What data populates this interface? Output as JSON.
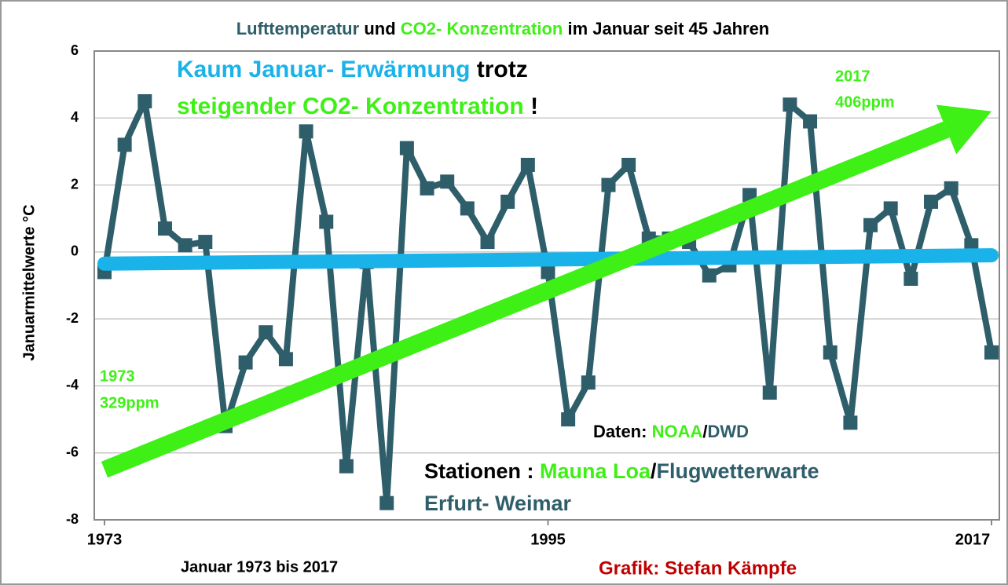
{
  "chart_data": {
    "type": "line",
    "title_parts": [
      "Lufttemperatur",
      "und",
      "CO2- Konzentration",
      "im Januar seit 45 Jahren"
    ],
    "ylabel": "Januarmittelwerte °C",
    "xlabel": "Januar 1973 bis 2017",
    "x": [
      1973,
      1974,
      1975,
      1976,
      1977,
      1978,
      1979,
      1980,
      1981,
      1982,
      1983,
      1984,
      1985,
      1986,
      1987,
      1988,
      1989,
      1990,
      1991,
      1992,
      1993,
      1994,
      1995,
      1996,
      1997,
      1998,
      1999,
      2000,
      2001,
      2002,
      2003,
      2004,
      2005,
      2006,
      2007,
      2008,
      2009,
      2010,
      2011,
      2012,
      2013,
      2014,
      2015,
      2016,
      2017
    ],
    "values": [
      -0.6,
      3.2,
      4.5,
      0.7,
      0.2,
      0.3,
      -5.2,
      -3.3,
      -2.4,
      -3.2,
      3.6,
      0.9,
      -6.4,
      -0.3,
      -7.5,
      3.1,
      1.9,
      2.1,
      1.3,
      0.3,
      1.5,
      2.6,
      -0.6,
      -5.0,
      -3.9,
      2.0,
      2.6,
      0.4,
      0.4,
      0.3,
      -0.7,
      -0.4,
      1.7,
      -4.2,
      4.4,
      3.9,
      -3.0,
      -5.1,
      0.8,
      1.3,
      -0.8,
      1.5,
      1.9,
      0.2,
      -3.0
    ],
    "color": "#2f5e6b",
    "xlim": [
      1973,
      2017
    ],
    "xticks": [
      1973,
      1995,
      2017
    ],
    "ylim": [
      -8,
      6
    ],
    "yticks": [
      6,
      4,
      2,
      0,
      -2,
      -4,
      -6,
      -8
    ],
    "grid": true,
    "trend_lines": [
      {
        "color": "#19b3ea",
        "x": [
          1973,
          2017
        ],
        "values": [
          -0.35,
          -0.1
        ],
        "arrow": false
      },
      {
        "color": "#3ef016",
        "x": [
          1973,
          2017
        ],
        "values": [
          -6.5,
          4.2
        ],
        "arrow": true
      }
    ],
    "annotations": [
      {
        "parts": [
          "Kaum Januar- Erwärmung",
          "trotz"
        ]
      },
      {
        "parts": [
          "steigender CO2- Konzentration",
          "!"
        ]
      },
      {
        "parts": [
          "2017",
          "406ppm"
        ]
      },
      {
        "parts": [
          "1973",
          "329ppm"
        ]
      },
      {
        "parts": [
          "Daten: ",
          "NOAA",
          "/",
          "DWD"
        ]
      },
      {
        "parts": [
          "Stationen : ",
          "Mauna Loa",
          "/",
          "Flugwetterwarte"
        ]
      },
      {
        "parts": [
          "Erfurt- Weimar"
        ]
      },
      {
        "parts": [
          "Grafik: Stefan Kämpfe"
        ]
      }
    ]
  }
}
